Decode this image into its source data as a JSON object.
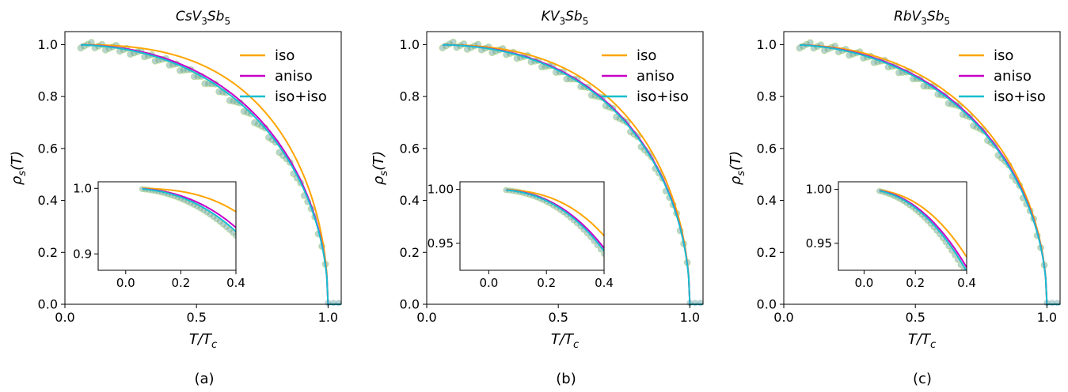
{
  "chart_data": [
    {
      "type": "line",
      "panel_label": "(a)",
      "title": "CsV3Sb5",
      "title_base": "CsV",
      "title_sub1": "3",
      "title_mid": "Sb",
      "title_sub2": "5",
      "xlabel": "T/Tc",
      "ylabel": "ρs(T)",
      "xlim": [
        0.0,
        1.05
      ],
      "ylim": [
        0.0,
        1.05
      ],
      "xticks": [
        "0.0",
        "0.5",
        "1.0"
      ],
      "yticks": [
        "0.0",
        "0.2",
        "0.4",
        "0.6",
        "0.8",
        "1.0"
      ],
      "legend": [
        "iso",
        "aniso",
        "iso+iso"
      ],
      "legend_position": "top-right",
      "colors": {
        "iso": "#ffa500",
        "aniso": "#c800c8",
        "iso+iso": "#17becf",
        "data": "#5f9ea0"
      },
      "series": [
        {
          "name": "iso",
          "params": {
            "p": 2.9
          }
        },
        {
          "name": "aniso",
          "params": {
            "p": 2.35
          }
        },
        {
          "name": "iso+iso",
          "params": {
            "p": 2.25
          }
        }
      ],
      "data_points": {
        "params": {
          "p": 2.15
        }
      },
      "inset": {
        "xlim": [
          -0.1,
          0.4
        ],
        "ylim": [
          0.875,
          1.01
        ],
        "xticks": [
          "0.0",
          "0.2",
          "0.4"
        ],
        "yticks": [
          "0.9",
          "1.0"
        ],
        "ytick_values": [
          0.9,
          1.0
        ]
      }
    },
    {
      "type": "line",
      "panel_label": "(b)",
      "title": "KV3Sb5",
      "title_base": "KV",
      "title_sub1": "3",
      "title_mid": "Sb",
      "title_sub2": "5",
      "xlabel": "T/Tc",
      "ylabel": "ρs(T)",
      "xlim": [
        0.0,
        1.05
      ],
      "ylim": [
        0.0,
        1.05
      ],
      "xticks": [
        "0.0",
        "0.5",
        "1.0"
      ],
      "yticks": [
        "0.0",
        "0.2",
        "0.4",
        "0.6",
        "0.8",
        "1.0"
      ],
      "legend": [
        "iso",
        "aniso",
        "iso+iso"
      ],
      "legend_position": "top-right",
      "colors": {
        "iso": "#ffa500",
        "aniso": "#c800c8",
        "iso+iso": "#17becf",
        "data": "#5f9ea0"
      },
      "series": [
        {
          "name": "iso",
          "params": {
            "p": 2.7
          }
        },
        {
          "name": "aniso",
          "params": {
            "p": 2.45
          }
        },
        {
          "name": "iso+iso",
          "params": {
            "p": 2.4
          }
        }
      ],
      "data_points": {
        "params": {
          "p": 2.35
        }
      },
      "inset": {
        "xlim": [
          -0.1,
          0.4
        ],
        "ylim": [
          0.925,
          1.007
        ],
        "xticks": [
          "0.0",
          "0.2",
          "0.4"
        ],
        "yticks": [
          "0.95",
          "1.00"
        ],
        "ytick_values": [
          0.95,
          1.0
        ]
      }
    },
    {
      "type": "line",
      "panel_label": "(c)",
      "title": "RbV3Sb5",
      "title_base": "RbV",
      "title_sub1": "3",
      "title_mid": "Sb",
      "title_sub2": "5",
      "xlabel": "T/Tc",
      "ylabel": "ρs(T)",
      "xlim": [
        0.0,
        1.05
      ],
      "ylim": [
        0.0,
        1.05
      ],
      "xticks": [
        "0.0",
        "0.5",
        "1.0"
      ],
      "yticks": [
        "0.0",
        "0.2",
        "0.4",
        "0.6",
        "0.8",
        "1.0"
      ],
      "legend": [
        "iso",
        "aniso",
        "iso+iso"
      ],
      "legend_position": "top-right",
      "colors": {
        "iso": "#ffa500",
        "aniso": "#c800c8",
        "iso+iso": "#17becf",
        "data": "#5f9ea0"
      },
      "series": [
        {
          "name": "iso",
          "params": {
            "p": 2.3
          }
        },
        {
          "name": "aniso",
          "params": {
            "p": 2.15
          }
        },
        {
          "name": "iso+iso",
          "params": {
            "p": 2.1
          }
        }
      ],
      "data_points": {
        "params": {
          "p": 2.05
        }
      },
      "inset": {
        "xlim": [
          -0.1,
          0.4
        ],
        "ylim": [
          0.925,
          1.007
        ],
        "xticks": [
          "0.0",
          "0.2",
          "0.4"
        ],
        "yticks": [
          "0.95",
          "1.00"
        ],
        "ytick_values": [
          0.95,
          1.0
        ]
      }
    }
  ]
}
